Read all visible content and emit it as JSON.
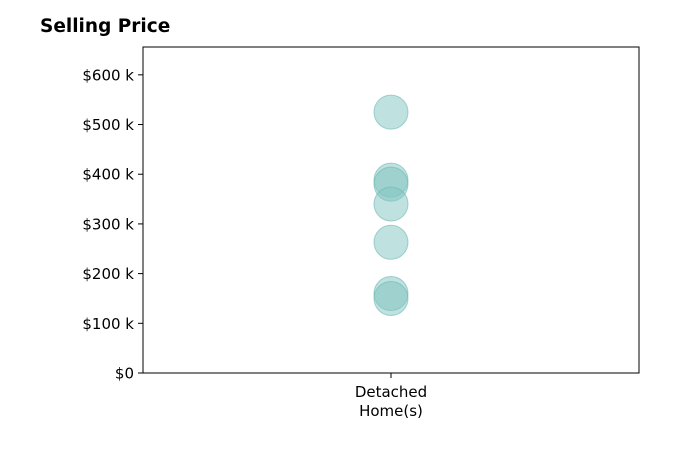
{
  "chart_data": {
    "type": "scatter",
    "title": "Selling Price",
    "xlabel": "",
    "ylabel": "",
    "categories": [
      "Detached\nHome(s)"
    ],
    "ylim": [
      0,
      656000
    ],
    "y_ticks": [
      0,
      100000,
      200000,
      300000,
      400000,
      500000,
      600000
    ],
    "y_tick_labels": [
      "$0",
      "$100 k",
      "$200 k",
      "$300 k",
      "$400 k",
      "$500 k",
      "$600 k"
    ],
    "series": [
      {
        "category_index": 0,
        "values": [
          525000,
          388000,
          380000,
          340000,
          263000,
          160000,
          150000
        ]
      }
    ],
    "marker_color": "#7fc4bf",
    "marker_edge_color": "#6bb8b2",
    "marker_opacity": 0.5,
    "grid": false,
    "legend": "none"
  }
}
